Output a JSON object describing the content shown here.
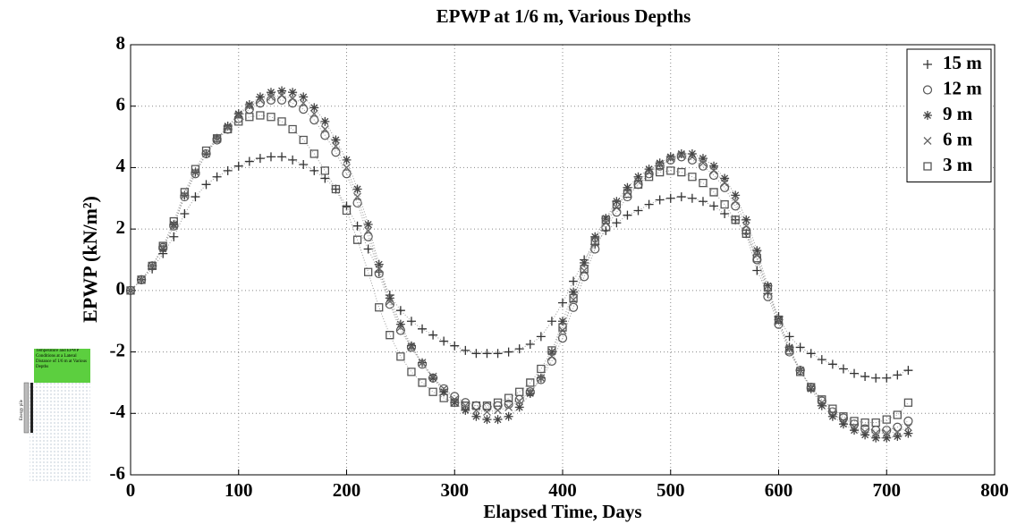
{
  "chart_data": {
    "type": "line",
    "title": "EPWP at 1/6 m, Various Depths",
    "x_label": "Elapsed Time, Days",
    "y_label": "EPWP (kN/m²)",
    "xlim": [
      0,
      800
    ],
    "xticks": [
      0,
      100,
      200,
      300,
      400,
      500,
      600,
      700,
      800
    ],
    "ylim": [
      -6,
      8
    ],
    "yticks": [
      -6,
      -4,
      -2,
      0,
      2,
      4,
      6,
      8
    ],
    "grid": true,
    "legend": "top-right",
    "x": [
      0,
      10,
      20,
      30,
      40,
      50,
      60,
      70,
      80,
      90,
      100,
      110,
      120,
      130,
      140,
      150,
      160,
      170,
      180,
      190,
      200,
      210,
      220,
      230,
      240,
      250,
      260,
      270,
      280,
      290,
      300,
      310,
      320,
      330,
      340,
      350,
      360,
      370,
      380,
      390,
      400,
      410,
      420,
      430,
      440,
      450,
      460,
      470,
      480,
      490,
      500,
      510,
      520,
      530,
      540,
      550,
      560,
      570,
      580,
      590,
      600,
      610,
      620,
      630,
      640,
      650,
      660,
      670,
      680,
      690,
      700,
      710,
      720
    ],
    "series": [
      {
        "name": "15 m",
        "color": "#333333",
        "marker": "plus",
        "values": [
          0,
          0.35,
          0.7,
          1.2,
          1.75,
          2.5,
          3.05,
          3.45,
          3.7,
          3.9,
          4.05,
          4.2,
          4.3,
          4.35,
          4.35,
          4.25,
          4.1,
          3.9,
          3.65,
          3.3,
          2.75,
          2.1,
          1.35,
          0.6,
          -0.15,
          -0.65,
          -1.0,
          -1.25,
          -1.45,
          -1.65,
          -1.8,
          -1.95,
          -2.05,
          -2.05,
          -2.05,
          -2.0,
          -1.9,
          -1.75,
          -1.5,
          -1.0,
          -0.4,
          0.3,
          1.0,
          1.5,
          1.95,
          2.2,
          2.45,
          2.6,
          2.8,
          2.95,
          3.0,
          3.05,
          3.0,
          2.9,
          2.75,
          2.5,
          2.3,
          1.85,
          0.65,
          -0.1,
          -0.85,
          -1.5,
          -1.85,
          -2.05,
          -2.25,
          -2.4,
          -2.55,
          -2.7,
          -2.8,
          -2.85,
          -2.85,
          -2.75,
          -2.6
        ]
      },
      {
        "name": "12 m",
        "color": "#555555",
        "marker": "circle",
        "values": [
          0,
          0.35,
          0.8,
          1.4,
          2.1,
          3.05,
          3.8,
          4.45,
          4.9,
          5.25,
          5.6,
          5.9,
          6.1,
          6.2,
          6.2,
          6.1,
          5.9,
          5.55,
          5.05,
          4.5,
          3.8,
          2.85,
          1.75,
          0.55,
          -0.45,
          -1.3,
          -1.85,
          -2.4,
          -2.85,
          -3.2,
          -3.45,
          -3.65,
          -3.75,
          -3.8,
          -3.75,
          -3.7,
          -3.55,
          -3.3,
          -2.9,
          -2.3,
          -1.55,
          -0.55,
          0.45,
          1.35,
          2.05,
          2.55,
          3.05,
          3.45,
          3.8,
          4.05,
          4.25,
          4.35,
          4.25,
          4.05,
          3.75,
          3.35,
          2.75,
          1.95,
          1.0,
          -0.2,
          -1.1,
          -2.0,
          -2.6,
          -3.15,
          -3.6,
          -3.95,
          -4.15,
          -4.35,
          -4.5,
          -4.55,
          -4.55,
          -4.45,
          -4.25
        ]
      },
      {
        "name": "9 m",
        "color": "#444444",
        "marker": "star",
        "values": [
          0,
          0.35,
          0.8,
          1.35,
          2.15,
          3.1,
          3.85,
          4.45,
          4.95,
          5.35,
          5.75,
          6.05,
          6.3,
          6.45,
          6.5,
          6.45,
          6.3,
          5.95,
          5.5,
          4.9,
          4.25,
          3.3,
          2.15,
          0.85,
          -0.25,
          -1.1,
          -1.8,
          -2.35,
          -2.85,
          -3.3,
          -3.65,
          -3.9,
          -4.1,
          -4.2,
          -4.2,
          -4.1,
          -3.8,
          -3.35,
          -2.85,
          -2.0,
          -1.0,
          -0.05,
          0.9,
          1.75,
          2.35,
          2.9,
          3.35,
          3.7,
          3.95,
          4.15,
          4.35,
          4.45,
          4.45,
          4.3,
          4.05,
          3.65,
          3.1,
          2.3,
          1.3,
          0.15,
          -0.95,
          -1.85,
          -2.6,
          -3.2,
          -3.75,
          -4.1,
          -4.35,
          -4.55,
          -4.7,
          -4.8,
          -4.8,
          -4.75,
          -4.65
        ]
      },
      {
        "name": "6 m",
        "color": "#666666",
        "marker": "cross",
        "values": [
          0,
          0.35,
          0.8,
          1.4,
          2.1,
          3.1,
          3.85,
          4.45,
          4.95,
          5.3,
          5.7,
          6.0,
          6.2,
          6.3,
          6.35,
          6.25,
          6.1,
          5.75,
          5.25,
          4.7,
          4.0,
          3.05,
          1.95,
          0.7,
          -0.35,
          -1.2,
          -1.85,
          -2.35,
          -2.8,
          -3.2,
          -3.55,
          -3.75,
          -3.9,
          -3.95,
          -3.9,
          -3.8,
          -3.6,
          -3.3,
          -2.85,
          -2.15,
          -1.3,
          -0.3,
          0.65,
          1.55,
          2.2,
          2.7,
          3.2,
          3.55,
          3.85,
          4.1,
          4.3,
          4.4,
          4.35,
          4.15,
          3.9,
          3.5,
          2.9,
          2.1,
          1.15,
          -0.05,
          -1.0,
          -1.9,
          -2.6,
          -3.15,
          -3.65,
          -4.0,
          -4.25,
          -4.45,
          -4.6,
          -4.65,
          -4.65,
          -4.6,
          -4.45
        ]
      },
      {
        "name": "3 m",
        "color": "#555555",
        "marker": "square",
        "values": [
          0,
          0.35,
          0.8,
          1.45,
          2.25,
          3.2,
          3.95,
          4.55,
          4.95,
          5.25,
          5.5,
          5.65,
          5.7,
          5.65,
          5.5,
          5.25,
          4.9,
          4.45,
          3.9,
          3.3,
          2.6,
          1.65,
          0.6,
          -0.55,
          -1.45,
          -2.15,
          -2.65,
          -3.0,
          -3.3,
          -3.5,
          -3.65,
          -3.75,
          -3.75,
          -3.75,
          -3.65,
          -3.5,
          -3.3,
          -3.0,
          -2.55,
          -1.95,
          -1.2,
          -0.25,
          0.7,
          1.6,
          2.3,
          2.8,
          3.15,
          3.45,
          3.7,
          3.85,
          3.9,
          3.85,
          3.7,
          3.5,
          3.2,
          2.8,
          2.3,
          1.85,
          1.05,
          0.1,
          -0.95,
          -1.95,
          -2.65,
          -3.15,
          -3.55,
          -3.85,
          -4.1,
          -4.25,
          -4.3,
          -4.3,
          -4.2,
          -4.05,
          -3.65
        ]
      }
    ]
  },
  "inset": {
    "caption": "Temperature and EPWP Conditions at a Lateral Distance of 1/6 m at Various Depths",
    "pile_label": "Energy pile"
  }
}
